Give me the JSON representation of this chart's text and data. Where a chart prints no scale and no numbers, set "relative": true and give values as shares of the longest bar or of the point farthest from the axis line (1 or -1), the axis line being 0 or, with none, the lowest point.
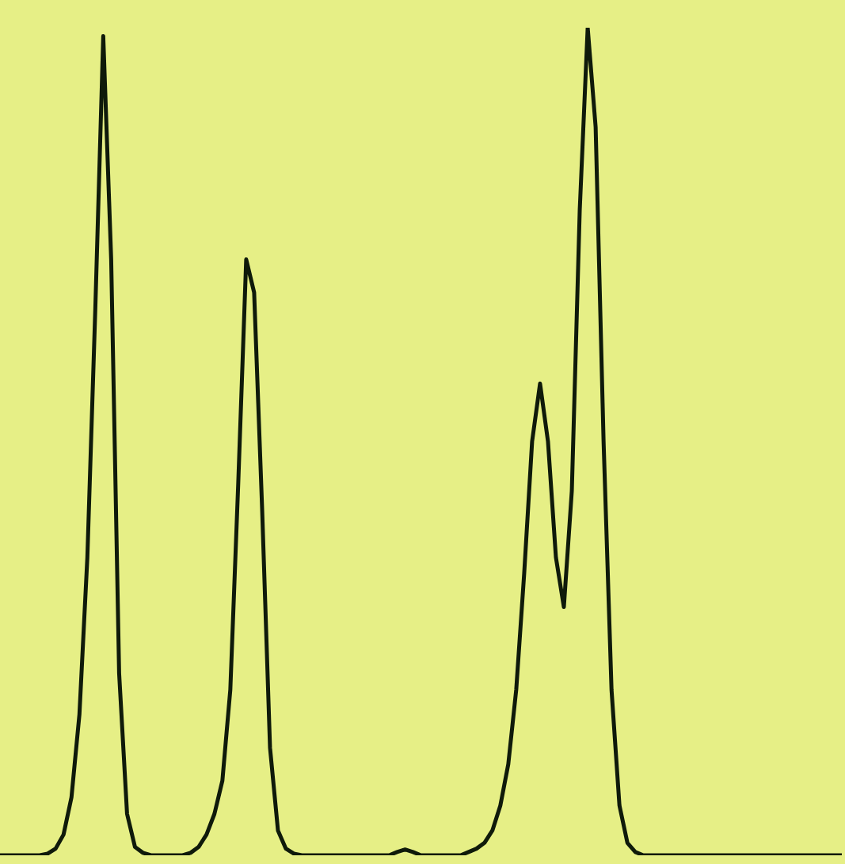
{
  "chart_data": {
    "type": "line",
    "relative": true,
    "categories": [
      null,
      null,
      null,
      null,
      null,
      null,
      null,
      null,
      null,
      null,
      null,
      null,
      null,
      null,
      null,
      null,
      null,
      null,
      null,
      null,
      null,
      null,
      null,
      null,
      null,
      null,
      null,
      null,
      null,
      null,
      null,
      null,
      null,
      null,
      null,
      null,
      null,
      null,
      null,
      null,
      null,
      null,
      null,
      null,
      null,
      null,
      null,
      null,
      null,
      null,
      null,
      null,
      null,
      null,
      null,
      null,
      null,
      null,
      null,
      null,
      null,
      null,
      null,
      null,
      null,
      null,
      null,
      null,
      null,
      null,
      null,
      null,
      null,
      null,
      null,
      null,
      null,
      null,
      null,
      null,
      null,
      null,
      null,
      null,
      null,
      null,
      null,
      null,
      null,
      null,
      null,
      null,
      null,
      null,
      null,
      null,
      null,
      null,
      null,
      null,
      null,
      null,
      null,
      null,
      null,
      null,
      null
    ],
    "series": [
      {
        "color": "#0f1a0a",
        "values": [
          0,
          0,
          0,
          0,
          0,
          0,
          0.002,
          0.008,
          0.025,
          0.07,
          0.17,
          0.36,
          0.66,
          0.99,
          0.72,
          0.22,
          0.05,
          0.01,
          0.003,
          0,
          0,
          0,
          0,
          0,
          0.003,
          0.01,
          0.025,
          0.05,
          0.09,
          0.2,
          0.45,
          0.72,
          0.68,
          0.42,
          0.13,
          0.03,
          0.008,
          0.002,
          0,
          0,
          0,
          0,
          0,
          0,
          0,
          0,
          0,
          0,
          0,
          0,
          0.004,
          0.007,
          0.004,
          0,
          0,
          0,
          0,
          0,
          0,
          0.004,
          0.008,
          0.015,
          0.03,
          0.06,
          0.11,
          0.2,
          0.34,
          0.5,
          0.57,
          0.5,
          0.36,
          0.3,
          0.44,
          0.78,
          1,
          0.88,
          0.5,
          0.2,
          0.06,
          0.015,
          0.004,
          0,
          0,
          0,
          0,
          0,
          0,
          0,
          0,
          0,
          0,
          0,
          0,
          0,
          0,
          0,
          0,
          0,
          0,
          0,
          0,
          0,
          0,
          0,
          0,
          0,
          0
        ]
      }
    ]
  }
}
